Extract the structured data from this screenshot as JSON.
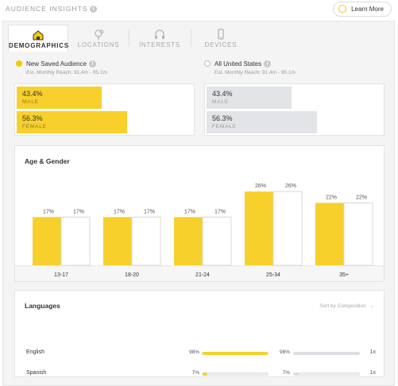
{
  "header": {
    "title": "AUDIENCE INSIGHTS",
    "learn_more": "Learn More"
  },
  "tabs": [
    {
      "label": "DEMOGRAPHICS",
      "icon": "house-icon",
      "active": true
    },
    {
      "label": "LOCATIONS",
      "icon": "location-pin-icon",
      "active": false
    },
    {
      "label": "INTERESTS",
      "icon": "headphones-icon",
      "active": false
    },
    {
      "label": "DEVICES",
      "icon": "phone-icon",
      "active": false
    }
  ],
  "audiences": {
    "saved": {
      "name": "New Saved Audience",
      "reach": "Est. Monthly Reach: 91.4m - 95.1m",
      "color": "#f7d02c",
      "male_pct": "43.4%",
      "male_label": "MALE",
      "male_value": 43.4,
      "female_pct": "56.3%",
      "female_label": "FEMALE",
      "female_value": 56.3
    },
    "all": {
      "name": "All United States",
      "reach": "Est. Monthly Reach: 91.4m - 95.1m",
      "color": "#e2e4e7",
      "male_pct": "43.4%",
      "male_label": "MALE",
      "male_value": 43.4,
      "female_pct": "56.3%",
      "female_label": "FEMALE",
      "female_value": 56.3
    }
  },
  "age_gender": {
    "title": "Age & Gender"
  },
  "chart_data": {
    "type": "bar",
    "categories": [
      "13-17",
      "18-20",
      "21-24",
      "25-34",
      "35+"
    ],
    "series": [
      {
        "values": [
          17,
          17,
          17,
          26,
          22
        ],
        "color": "#f7d02c"
      },
      {
        "values": [
          17,
          17,
          17,
          26,
          22
        ],
        "color": "#ffffff"
      }
    ],
    "data_labels": [
      "17%",
      "17%",
      "17%",
      "26%",
      "22%"
    ],
    "ylim": [
      0,
      28
    ],
    "grid": false
  },
  "languages": {
    "title": "Languages",
    "sort_label": "Sort by Composition",
    "rows": [
      {
        "name": "English",
        "pct_a": "98%",
        "val_a": 98,
        "pct_b": "98%",
        "val_b": 98,
        "index": "1x"
      },
      {
        "name": "Spanish",
        "pct_a": "7%",
        "val_a": 7,
        "pct_b": "7%",
        "val_b": 7,
        "index": "1x"
      }
    ],
    "color_a": "#f7d02c",
    "color_b": "#dcdfe3"
  }
}
